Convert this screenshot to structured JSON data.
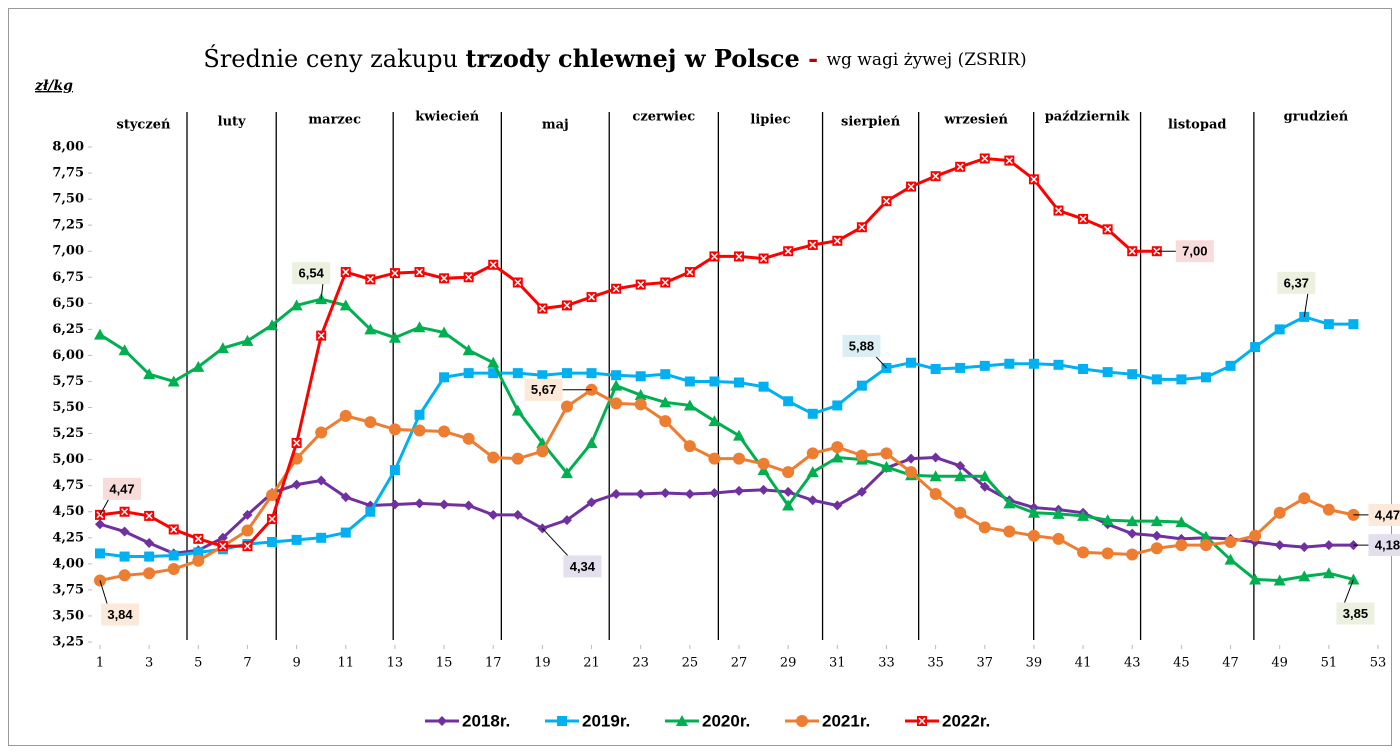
{
  "chart_data": {
    "type": "line",
    "title_parts": [
      "Średnie ceny zakupu ",
      "trzody chlewnej w Polsce",
      " - ",
      "wg wagi żywej (ZSRIR)"
    ],
    "y_label": "zł/kg",
    "months": [
      "styczeń",
      "luty",
      "marzec",
      "kwiecień",
      "maj",
      "czerwiec",
      "lipiec",
      "sierpień",
      "wrzesień",
      "październik",
      "listopad",
      "grudzień"
    ],
    "month_separators": [
      4.54,
      8.17,
      12.93,
      17.33,
      21.72,
      26.16,
      30.4,
      34.31,
      38.99,
      43.34,
      47.95
    ],
    "x": [
      1,
      2,
      3,
      4,
      5,
      6,
      7,
      8,
      9,
      10,
      11,
      12,
      13,
      14,
      15,
      16,
      17,
      18,
      19,
      20,
      21,
      22,
      23,
      24,
      25,
      26,
      27,
      28,
      29,
      30,
      31,
      32,
      33,
      34,
      35,
      36,
      37,
      38,
      39,
      40,
      41,
      42,
      43,
      44,
      45,
      46,
      47,
      48,
      49,
      50,
      51,
      52
    ],
    "xlim": [
      1,
      53
    ],
    "xticks": [
      1,
      3,
      5,
      7,
      9,
      11,
      13,
      15,
      17,
      19,
      21,
      23,
      25,
      27,
      29,
      31,
      33,
      35,
      37,
      39,
      41,
      43,
      45,
      47,
      49,
      51,
      53
    ],
    "ylim": [
      3.25,
      8
    ],
    "yticks": [
      {
        "value": 3.25,
        "label": "3,25"
      },
      {
        "value": 3.5,
        "label": "3,50"
      },
      {
        "value": 3.75,
        "label": "3,75"
      },
      {
        "value": 4,
        "label": "4,00"
      },
      {
        "value": 4.25,
        "label": "4,25"
      },
      {
        "value": 4.5,
        "label": "4,50"
      },
      {
        "value": 4.75,
        "label": "4,75"
      },
      {
        "value": 5,
        "label": "5,00"
      },
      {
        "value": 5.25,
        "label": "5,25"
      },
      {
        "value": 5.5,
        "label": "5,50"
      },
      {
        "value": 5.75,
        "label": "5,75"
      },
      {
        "value": 6,
        "label": "6,00"
      },
      {
        "value": 6.25,
        "label": "6,25"
      },
      {
        "value": 6.5,
        "label": "6,50"
      },
      {
        "value": 6.75,
        "label": "6,75"
      },
      {
        "value": 7,
        "label": "7,00"
      },
      {
        "value": 7.25,
        "label": "7,25"
      },
      {
        "value": 7.5,
        "label": "7,50"
      },
      {
        "value": 7.75,
        "label": "7,75"
      },
      {
        "value": 8,
        "label": "8,00"
      }
    ],
    "grid": false,
    "series": [
      {
        "name": "2018r.",
        "color": "#7030a0",
        "marker": "diamond",
        "values": [
          4.38,
          4.31,
          4.2,
          4.1,
          4.13,
          4.25,
          4.47,
          4.68,
          4.76,
          4.8,
          4.64,
          4.56,
          4.57,
          4.58,
          4.57,
          4.56,
          4.47,
          4.47,
          4.34,
          4.42,
          4.59,
          4.67,
          4.67,
          4.68,
          4.67,
          4.68,
          4.7,
          4.71,
          4.69,
          4.61,
          4.56,
          4.69,
          4.92,
          5.01,
          5.02,
          4.94,
          4.74,
          4.61,
          4.54,
          4.52,
          4.49,
          4.38,
          4.29,
          4.27,
          4.24,
          4.25,
          4.24,
          4.21,
          4.18,
          4.16,
          4.18,
          4.18
        ]
      },
      {
        "name": "2019r.",
        "color": "#00b0f0",
        "marker": "square",
        "values": [
          4.1,
          4.07,
          4.07,
          4.08,
          4.11,
          4.14,
          4.19,
          4.21,
          4.23,
          4.25,
          4.3,
          4.5,
          4.9,
          5.43,
          5.79,
          5.83,
          5.83,
          5.83,
          5.81,
          5.83,
          5.83,
          5.81,
          5.8,
          5.82,
          5.75,
          5.75,
          5.74,
          5.7,
          5.56,
          5.44,
          5.52,
          5.71,
          5.88,
          5.93,
          5.87,
          5.88,
          5.9,
          5.92,
          5.92,
          5.91,
          5.87,
          5.84,
          5.82,
          5.77,
          5.77,
          5.79,
          5.9,
          6.08,
          6.25,
          6.37,
          6.3,
          6.3
        ]
      },
      {
        "name": "2020r.",
        "color": "#00b050",
        "marker": "triangle",
        "values": [
          6.2,
          6.05,
          5.82,
          5.75,
          5.89,
          6.07,
          6.14,
          6.29,
          6.48,
          6.54,
          6.48,
          6.25,
          6.17,
          6.27,
          6.22,
          6.05,
          5.93,
          5.47,
          5.16,
          4.87,
          5.16,
          5.71,
          5.62,
          5.55,
          5.52,
          5.37,
          5.23,
          4.9,
          4.56,
          4.88,
          5.02,
          5.0,
          4.93,
          4.85,
          4.84,
          4.84,
          4.84,
          4.58,
          4.49,
          4.48,
          4.46,
          4.42,
          4.41,
          4.41,
          4.4,
          4.26,
          4.04,
          3.85,
          3.84,
          3.88,
          3.91,
          3.85
        ]
      },
      {
        "name": "2021r.",
        "color": "#ed7d31",
        "marker": "circle",
        "values": [
          3.84,
          3.89,
          3.91,
          3.95,
          4.03,
          4.17,
          4.32,
          4.66,
          5.01,
          5.26,
          5.42,
          5.36,
          5.29,
          5.28,
          5.27,
          5.2,
          5.02,
          5.01,
          5.08,
          5.51,
          5.67,
          5.54,
          5.53,
          5.37,
          5.13,
          5.01,
          5.01,
          4.96,
          4.88,
          5.06,
          5.12,
          5.04,
          5.06,
          4.88,
          4.67,
          4.49,
          4.35,
          4.31,
          4.27,
          4.24,
          4.11,
          4.1,
          4.09,
          4.15,
          4.18,
          4.18,
          4.21,
          4.27,
          4.49,
          4.63,
          4.52,
          4.47
        ]
      },
      {
        "name": "2022r.",
        "color": "#ff0000",
        "marker": "xsquare",
        "values": [
          4.47,
          4.5,
          4.46,
          4.33,
          4.24,
          4.17,
          4.17,
          4.43,
          5.16,
          6.19,
          6.8,
          6.73,
          6.79,
          6.8,
          6.74,
          6.75,
          6.87,
          6.7,
          6.45,
          6.48,
          6.56,
          6.64,
          6.68,
          6.7,
          6.8,
          6.95,
          6.95,
          6.93,
          7.0,
          7.06,
          7.1,
          7.23,
          7.48,
          7.62,
          7.72,
          7.81,
          7.89,
          7.87,
          7.69,
          7.39,
          7.31,
          7.21,
          7.0,
          7.0,
          null,
          null,
          null,
          null,
          null,
          null,
          null,
          null
        ]
      }
    ],
    "annotations": [
      {
        "label": "4,47",
        "x": 1,
        "value": 4.47,
        "color": "#ff0000",
        "background": "#f8dcdc"
      },
      {
        "label": "6,54",
        "x": 10,
        "value": 6.54,
        "color": "#4f6228",
        "background": "#ebf1de"
      },
      {
        "label": "5,67",
        "x": 21,
        "value": 5.67,
        "color": "#000000",
        "background": "#fde9d9"
      },
      {
        "label": "4,34",
        "x": 19,
        "value": 4.34,
        "color": "#000000",
        "background": "#e4dfec"
      },
      {
        "label": "5,88",
        "x": 33,
        "value": 5.88,
        "color": "#000000",
        "background": "#dbeef4"
      },
      {
        "label": "7,00",
        "x": 44,
        "value": 7.0,
        "color": "#000000",
        "background": "#f8dcdc"
      },
      {
        "label": "6,37",
        "x": 50,
        "value": 6.37,
        "color": "#000000",
        "background": "#ebf1de"
      },
      {
        "label": "3,84",
        "x": 1,
        "value": 3.84,
        "color": "#000000",
        "background": "#fde9d9"
      },
      {
        "label": "4,47",
        "x": 52,
        "value": 4.47,
        "color": "#000000",
        "background": "#fde9d9"
      },
      {
        "label": "4,18",
        "x": 52,
        "value": 4.18,
        "color": "#000000",
        "background": "#e4dfec"
      },
      {
        "label": "3,85",
        "x": 52,
        "value": 3.85,
        "color": "#4f6228",
        "background": "#ebf1de"
      }
    ]
  }
}
